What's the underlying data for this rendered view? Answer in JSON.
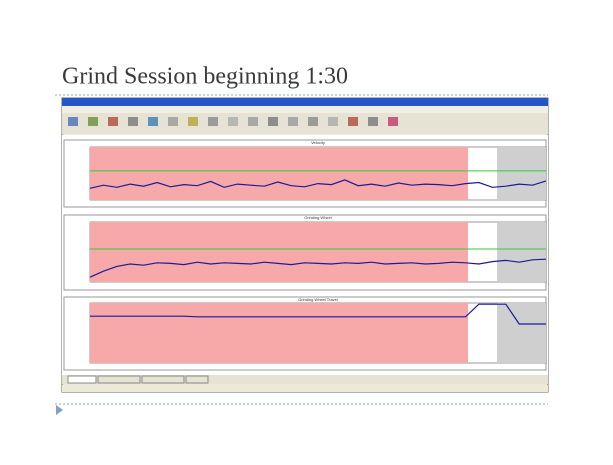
{
  "slide": {
    "title": "Grind Session beginning 1:30"
  },
  "panels": [
    {
      "title": "Velocity",
      "ylim": [
        0,
        100
      ],
      "guide": 55,
      "color": "#1a1a9a",
      "values": [
        22,
        28,
        24,
        30,
        26,
        33,
        25,
        29,
        27,
        35,
        24,
        30,
        28,
        26,
        34,
        27,
        25,
        31,
        29,
        38,
        27,
        30,
        26,
        32,
        28,
        30,
        29,
        27,
        31,
        33,
        24,
        26,
        30,
        28,
        36
      ]
    },
    {
      "title": "Grinding Wheel",
      "ylim": [
        0,
        100
      ],
      "guide": 55,
      "color": "#1a1a9a",
      "values": [
        8,
        18,
        26,
        30,
        28,
        32,
        31,
        29,
        33,
        30,
        32,
        31,
        30,
        33,
        31,
        29,
        32,
        31,
        30,
        32,
        31,
        33,
        30,
        31,
        32,
        30,
        31,
        33,
        32,
        30,
        34,
        36,
        33,
        37,
        38
      ]
    },
    {
      "title": "Grinding Wheel Travel",
      "ylim": [
        0,
        100
      ],
      "guide": null,
      "color": "#1a1a9a",
      "values": [
        78,
        78,
        78,
        78,
        78,
        78,
        78,
        78,
        77,
        77,
        77,
        77,
        77,
        77,
        77,
        77,
        77,
        77,
        77,
        77,
        77,
        77,
        77,
        77,
        77,
        77,
        77,
        77,
        77,
        98,
        98,
        98,
        65,
        65,
        65
      ]
    }
  ]
}
